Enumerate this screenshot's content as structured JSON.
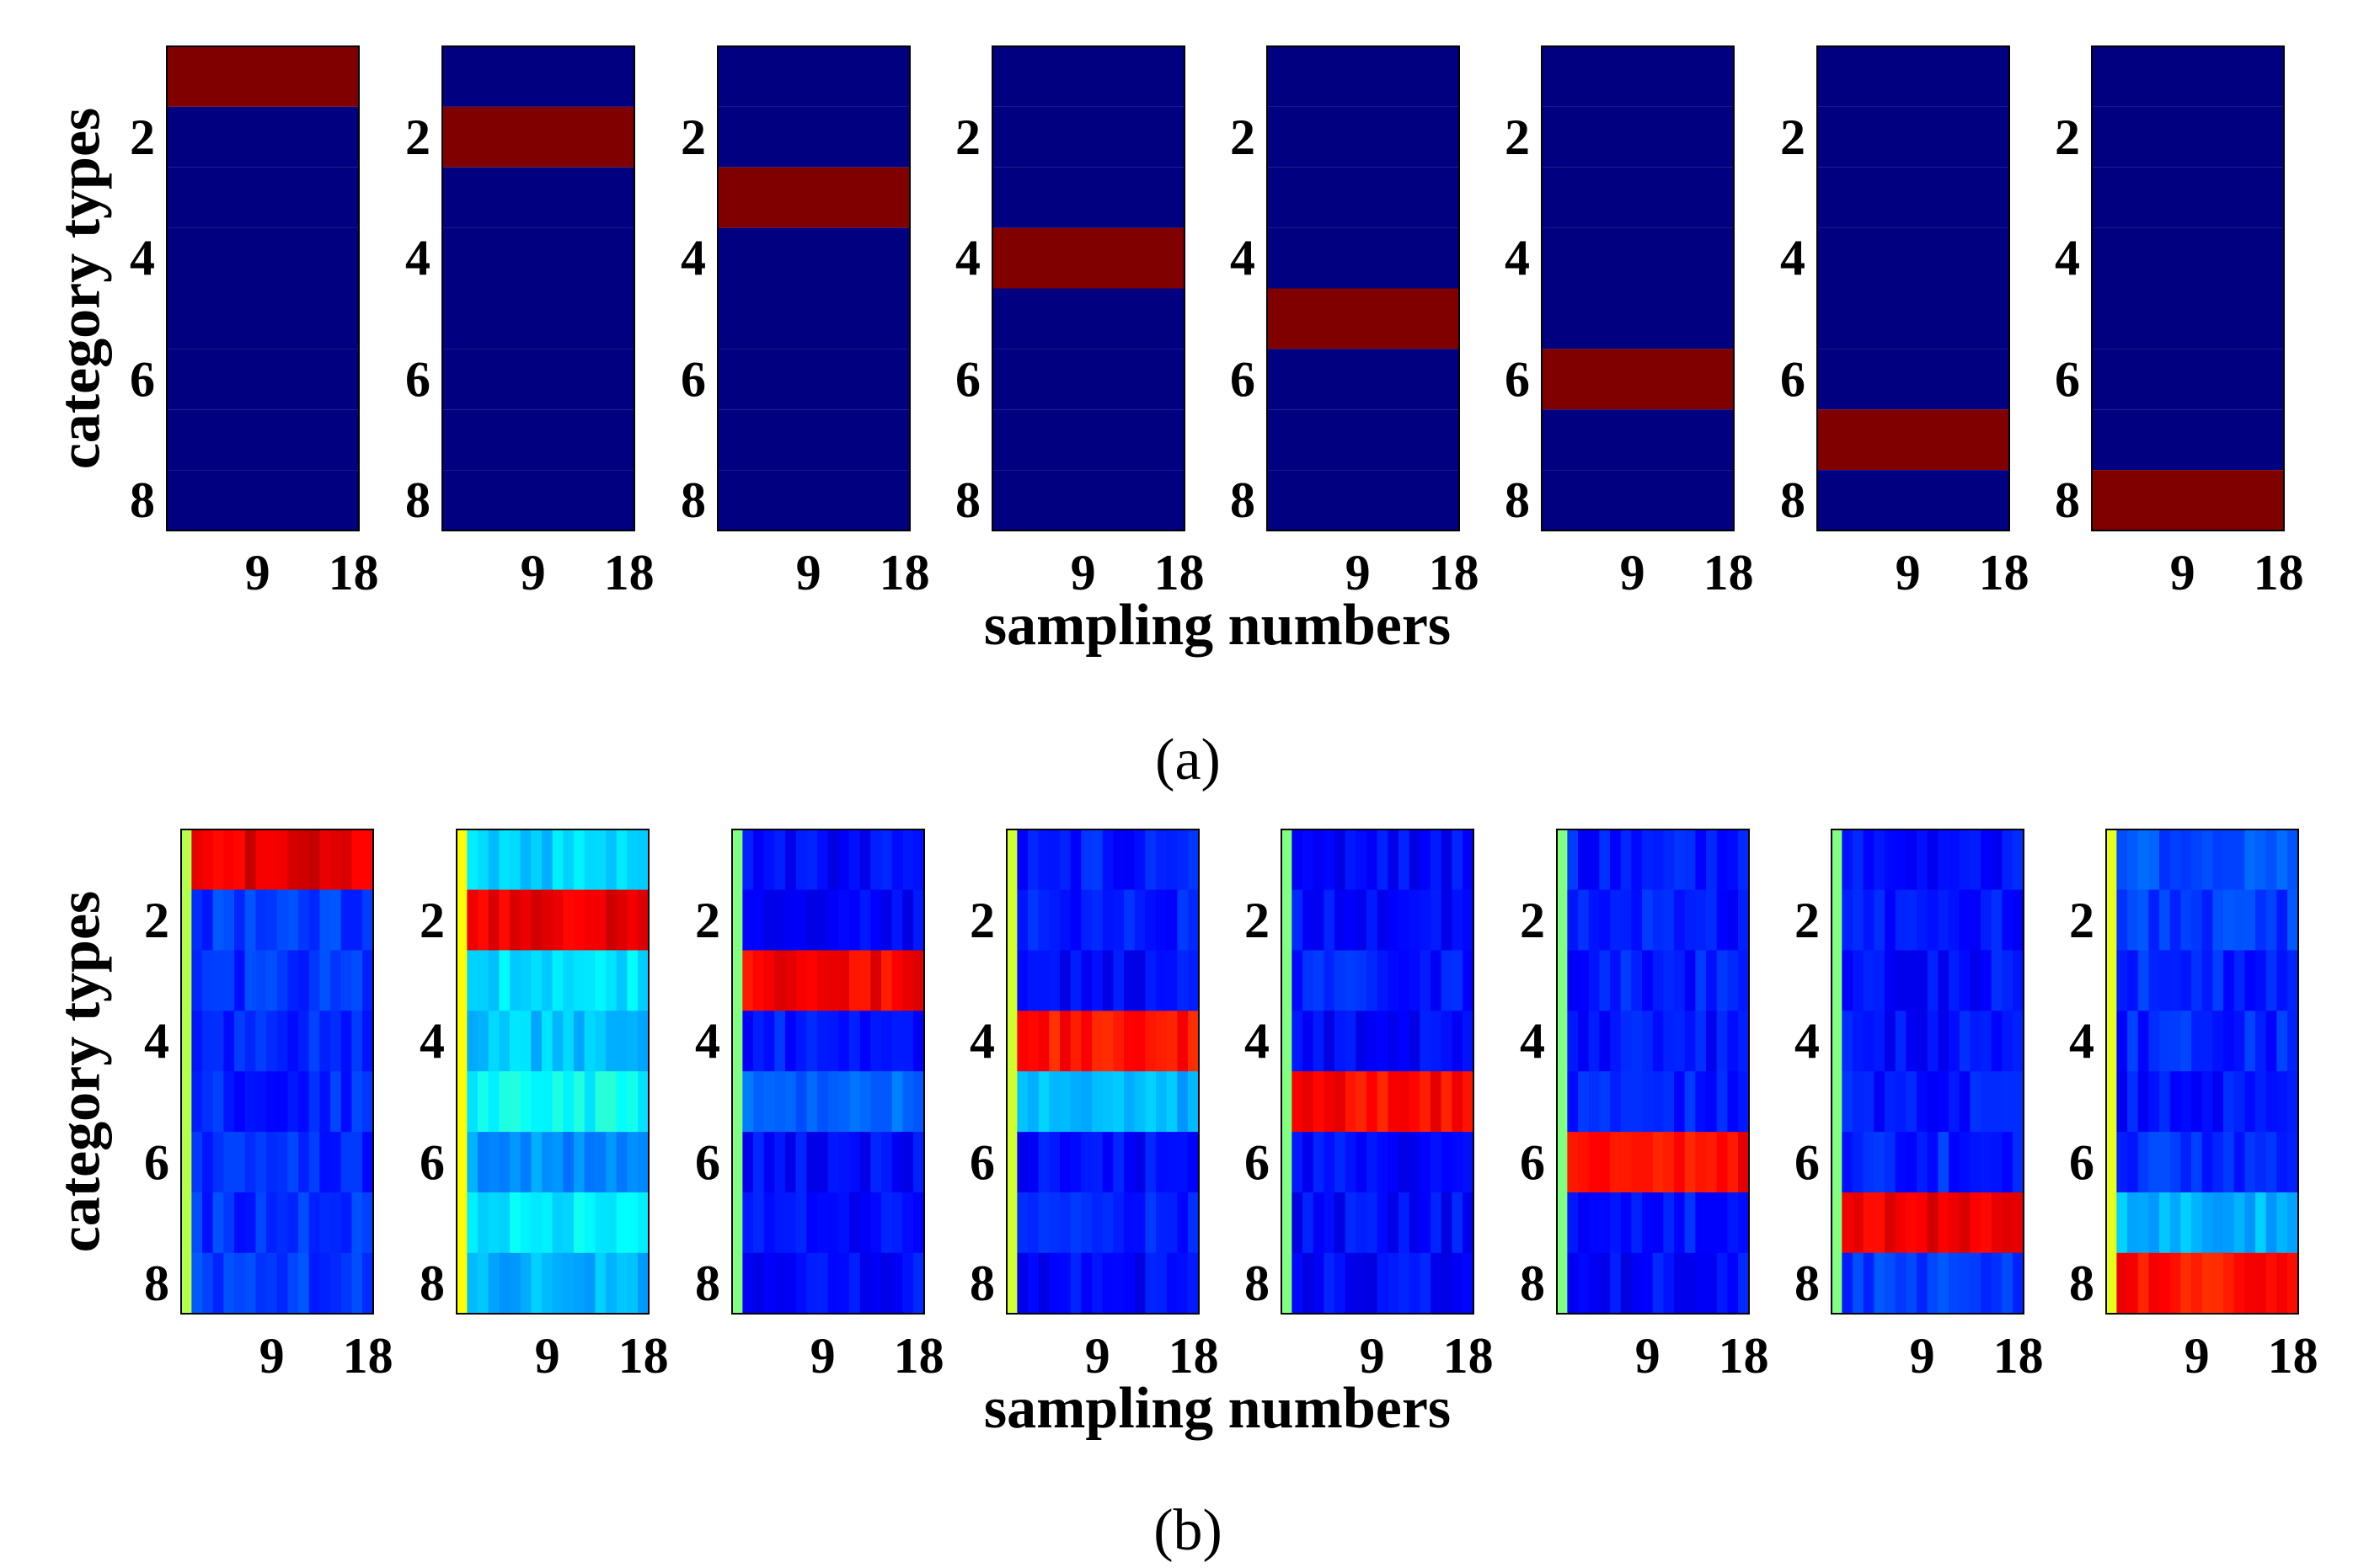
{
  "figure": {
    "panel_a_caption": "(a)",
    "panel_b_caption": "(b)"
  },
  "chart_data": [
    {
      "type": "heatmap",
      "panel": "a",
      "ylabel": "category types",
      "xlabel": "sampling numbers",
      "x_ticks": [
        "9",
        "18"
      ],
      "y_ticks": [
        "2",
        "4",
        "6",
        "8"
      ],
      "rows": 8,
      "cols": 18,
      "colormap": "jet",
      "subplots": [
        {
          "target_class": 1,
          "row_values": [
            1,
            0,
            0,
            0,
            0,
            0,
            0,
            0
          ]
        },
        {
          "target_class": 2,
          "row_values": [
            0,
            1,
            0,
            0,
            0,
            0,
            0,
            0
          ]
        },
        {
          "target_class": 3,
          "row_values": [
            0,
            0,
            1,
            0,
            0,
            0,
            0,
            0
          ]
        },
        {
          "target_class": 4,
          "row_values": [
            0,
            0,
            0,
            1,
            0,
            0,
            0,
            0
          ]
        },
        {
          "target_class": 5,
          "row_values": [
            0,
            0,
            0,
            0,
            1,
            0,
            0,
            0
          ]
        },
        {
          "target_class": 6,
          "row_values": [
            0,
            0,
            0,
            0,
            0,
            1,
            0,
            0
          ]
        },
        {
          "target_class": 7,
          "row_values": [
            0,
            0,
            0,
            0,
            0,
            0,
            1,
            0
          ]
        },
        {
          "target_class": 8,
          "row_values": [
            0,
            0,
            0,
            0,
            0,
            0,
            0,
            1
          ]
        }
      ]
    },
    {
      "type": "heatmap",
      "panel": "b",
      "ylabel": "category types",
      "xlabel": "sampling numbers",
      "x_ticks": [
        "9",
        "18"
      ],
      "y_ticks": [
        "2",
        "4",
        "6",
        "8"
      ],
      "rows": 8,
      "cols": 18,
      "colormap": "jet",
      "first_column_values": [
        0.55,
        0.62,
        0.5,
        0.58,
        0.5,
        0.5,
        0.5,
        0.6
      ],
      "subplots": [
        {
          "target_class": 1,
          "row_values": [
            0.9,
            0.18,
            0.17,
            0.16,
            0.16,
            0.16,
            0.17,
            0.18
          ]
        },
        {
          "target_class": 2,
          "row_values": [
            0.33,
            0.9,
            0.34,
            0.32,
            0.38,
            0.27,
            0.36,
            0.3
          ]
        },
        {
          "target_class": 3,
          "row_values": [
            0.13,
            0.13,
            0.88,
            0.15,
            0.22,
            0.13,
            0.13,
            0.13
          ]
        },
        {
          "target_class": 4,
          "row_values": [
            0.15,
            0.15,
            0.13,
            0.86,
            0.3,
            0.13,
            0.15,
            0.13
          ]
        },
        {
          "target_class": 5,
          "row_values": [
            0.13,
            0.13,
            0.15,
            0.13,
            0.87,
            0.13,
            0.13,
            0.13
          ]
        },
        {
          "target_class": 6,
          "row_values": [
            0.15,
            0.15,
            0.15,
            0.14,
            0.15,
            0.87,
            0.15,
            0.13
          ]
        },
        {
          "target_class": 7,
          "row_values": [
            0.14,
            0.14,
            0.14,
            0.14,
            0.15,
            0.16,
            0.89,
            0.18
          ]
        },
        {
          "target_class": 8,
          "row_values": [
            0.2,
            0.18,
            0.16,
            0.16,
            0.14,
            0.17,
            0.3,
            0.86
          ]
        }
      ]
    }
  ]
}
